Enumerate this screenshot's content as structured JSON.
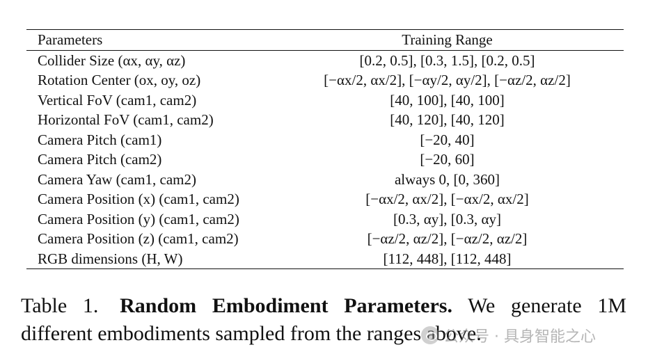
{
  "table": {
    "headers": [
      "Parameters",
      "Training Range"
    ],
    "rows": [
      {
        "param": "Collider Size (αx, αy, αz)",
        "range": "[0.2, 0.5], [0.3, 1.5], [0.2, 0.5]"
      },
      {
        "param": "Rotation Center (ox, oy, oz)",
        "range": "[−αx/2, αx/2], [−αy/2, αy/2], [−αz/2, αz/2]"
      },
      {
        "param": "Vertical FoV (cam1, cam2)",
        "range": "[40, 100], [40, 100]"
      },
      {
        "param": "Horizontal FoV (cam1, cam2)",
        "range": "[40, 120], [40, 120]"
      },
      {
        "param": "Camera Pitch (cam1)",
        "range": "[−20, 40]"
      },
      {
        "param": "Camera Pitch (cam2)",
        "range": "[−20, 60]"
      },
      {
        "param": "Camera Yaw (cam1, cam2)",
        "range": "always 0, [0, 360]"
      },
      {
        "param": "Camera Position (x) (cam1, cam2)",
        "range": "[−αx/2, αx/2], [−αx/2, αx/2]"
      },
      {
        "param": "Camera Position (y) (cam1, cam2)",
        "range": "[0.3, αy], [0.3, αy]"
      },
      {
        "param": "Camera Position (z) (cam1, cam2)",
        "range": "[−αz/2, αz/2], [−αz/2, αz/2]"
      },
      {
        "param": "RGB dimensions (H, W)",
        "range": "[112, 448], [112, 448]"
      }
    ]
  },
  "caption": {
    "label": "Table 1.",
    "title": "Random Embodiment Parameters.",
    "text": "We generate 1M different embodiments sampled from the ranges above."
  },
  "watermark": {
    "text": "公众号 · 具身智能之心",
    "icon": "wechat-logo-icon"
  }
}
